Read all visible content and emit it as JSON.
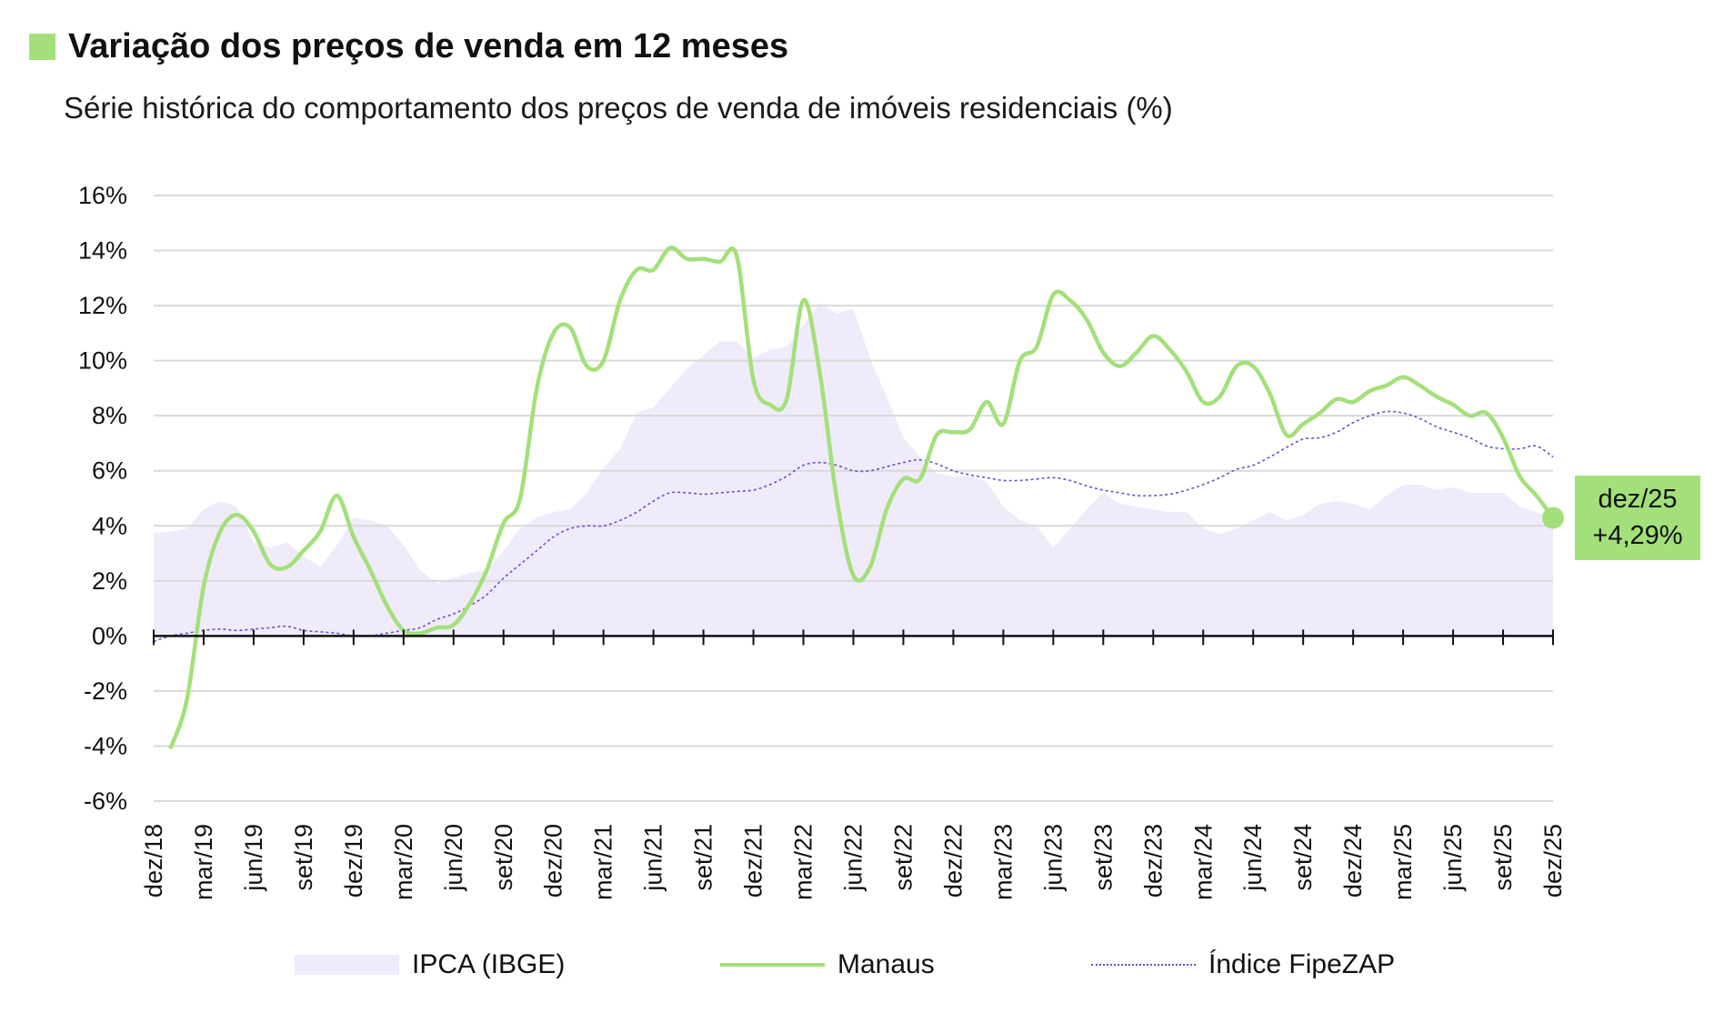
{
  "header": {
    "title": "Variação dos preços de venda em 12 meses",
    "subtitle": "Série histórica do comportamento dos preços de venda de imóveis residenciais (%)"
  },
  "callout": {
    "date": "dez/25",
    "value": "+4,29%"
  },
  "legend": [
    {
      "label": "IPCA (IBGE)",
      "style": "area",
      "color": "#f0ebfb"
    },
    {
      "label": "Manaus",
      "style": "line",
      "color": "#a3e07a"
    },
    {
      "label": "Índice FipeZAP",
      "style": "dotted",
      "color": "#6b4fc9"
    }
  ],
  "chart_data": {
    "type": "line",
    "title": "Variação dos preços de venda em 12 meses",
    "subtitle": "Série histórica do comportamento dos preços de venda de imóveis residenciais (%)",
    "ylim": [
      -6,
      16
    ],
    "yticks": [
      "16%",
      "14%",
      "12%",
      "10%",
      "8%",
      "6%",
      "4%",
      "2%",
      "0%",
      "-2%",
      "-4%",
      "-6%"
    ],
    "ytick_values": [
      16,
      14,
      12,
      10,
      8,
      6,
      4,
      2,
      0,
      -2,
      -4,
      -6
    ],
    "xticks": [
      "dez/18",
      "mar/19",
      "jun/19",
      "set/19",
      "dez/19",
      "mar/20",
      "jun/20",
      "set/20",
      "dez/20",
      "mar/21",
      "jun/21",
      "set/21",
      "dez/21",
      "mar/22",
      "jun/22",
      "set/22",
      "dez/22",
      "mar/23",
      "jun/23",
      "set/23",
      "dez/23",
      "mar/24",
      "jun/24",
      "set/24",
      "dez/24",
      "mar/25",
      "jun/25",
      "set/25",
      "dez/25"
    ],
    "x_range": [
      "dez/18",
      "dez/25"
    ],
    "x_frequency": "monthly",
    "grid": true,
    "legend_position": "bottom",
    "series": [
      {
        "name": "IPCA (IBGE)",
        "type": "area",
        "color": "#f0ebfb",
        "values": [
          3.75,
          3.8,
          3.9,
          4.6,
          4.9,
          4.7,
          3.4,
          3.2,
          3.4,
          2.9,
          2.5,
          3.3,
          4.3,
          4.2,
          4.0,
          3.3,
          2.4,
          1.9,
          2.1,
          2.3,
          2.4,
          3.1,
          3.9,
          4.3,
          4.5,
          4.6,
          5.2,
          6.1,
          6.8,
          8.1,
          8.3,
          9.0,
          9.7,
          10.2,
          10.7,
          10.7,
          10.1,
          10.4,
          10.5,
          11.3,
          12.1,
          11.7,
          11.9,
          10.1,
          8.7,
          7.2,
          6.5,
          5.9,
          5.8,
          5.8,
          5.6,
          4.7,
          4.2,
          4.0,
          3.2,
          3.9,
          4.6,
          5.2,
          4.8,
          4.7,
          4.6,
          4.5,
          4.5,
          3.9,
          3.7,
          3.9,
          4.2,
          4.5,
          4.2,
          4.4,
          4.8,
          4.9,
          4.8,
          4.6,
          5.1,
          5.5,
          5.5,
          5.3,
          5.4,
          5.2,
          5.2,
          5.2,
          4.7,
          4.5,
          4.3
        ]
      },
      {
        "name": "Manaus",
        "type": "line",
        "color": "#a3e07a",
        "values": [
          null,
          -4.1,
          -2.3,
          1.8,
          3.8,
          4.4,
          3.8,
          2.6,
          2.5,
          3.1,
          3.8,
          5.1,
          3.6,
          2.4,
          1.1,
          0.2,
          0.1,
          0.3,
          0.4,
          1.2,
          2.4,
          4.1,
          5.0,
          9.0,
          11.0,
          11.2,
          9.8,
          10.0,
          12.2,
          13.3,
          13.3,
          14.1,
          13.7,
          13.7,
          13.6,
          13.8,
          9.3,
          8.4,
          8.6,
          12.2,
          9.5,
          5.0,
          2.2,
          2.5,
          4.6,
          5.7,
          5.7,
          7.3,
          7.4,
          7.5,
          8.5,
          7.7,
          10.0,
          10.5,
          12.4,
          12.2,
          11.5,
          10.3,
          9.8,
          10.3,
          10.9,
          10.4,
          9.6,
          8.5,
          8.7,
          9.8,
          9.8,
          8.8,
          7.3,
          7.7,
          8.1,
          8.6,
          8.5,
          8.9,
          9.1,
          9.4,
          9.1,
          8.7,
          8.4,
          8.0,
          8.1,
          7.2,
          5.8,
          5.1,
          4.29
        ]
      },
      {
        "name": "Índice FipeZAP",
        "type": "line",
        "color": "#6b4fc9",
        "values": [
          -0.2,
          0.0,
          0.1,
          0.2,
          0.25,
          0.2,
          0.25,
          0.3,
          0.35,
          0.2,
          0.15,
          0.1,
          0.0,
          0.0,
          0.1,
          0.2,
          0.3,
          0.6,
          0.8,
          1.1,
          1.5,
          2.1,
          2.6,
          3.1,
          3.6,
          3.9,
          4.0,
          4.0,
          4.2,
          4.5,
          4.9,
          5.2,
          5.2,
          5.15,
          5.2,
          5.25,
          5.3,
          5.5,
          5.8,
          6.2,
          6.3,
          6.2,
          6.0,
          6.0,
          6.15,
          6.3,
          6.4,
          6.25,
          6.0,
          5.85,
          5.75,
          5.65,
          5.65,
          5.7,
          5.75,
          5.65,
          5.45,
          5.3,
          5.2,
          5.1,
          5.1,
          5.15,
          5.3,
          5.5,
          5.75,
          6.05,
          6.2,
          6.5,
          6.85,
          7.15,
          7.2,
          7.4,
          7.75,
          8.0,
          8.15,
          8.1,
          7.9,
          7.6,
          7.4,
          7.2,
          6.9,
          6.8,
          6.8,
          6.9,
          6.5
        ]
      }
    ],
    "annotations": [
      {
        "label": "dez/25",
        "value": "+4,29%"
      }
    ]
  }
}
